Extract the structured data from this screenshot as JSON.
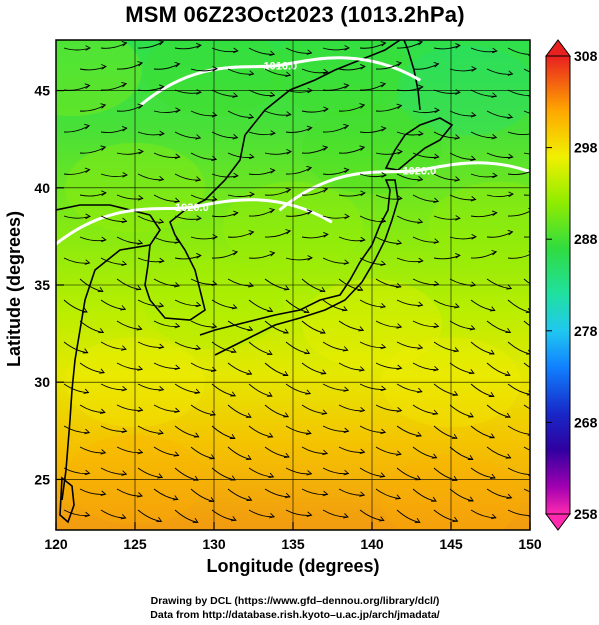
{
  "chart_data": {
    "type": "heatmap",
    "title": "MSM 06Z23Oct2023 (1013.2hPa)",
    "xlabel": "Longitude (degrees)",
    "ylabel": "Latitude  (degrees)",
    "xlim": [
      120,
      150
    ],
    "ylim": [
      22.4,
      47.6
    ],
    "xticks": [
      "120",
      "125",
      "130",
      "135",
      "140",
      "145",
      "150"
    ],
    "yticks": [
      "25",
      "30",
      "35",
      "40",
      "45"
    ],
    "grid": true,
    "colorbar": {
      "min": 258,
      "max": 308,
      "ticks": [
        "258",
        "268",
        "278",
        "288",
        "298",
        "308"
      ],
      "colors": [
        "#ff2ab0",
        "#5a00a0",
        "#1820c0",
        "#1070ff",
        "#20d0e8",
        "#20e080",
        "#40e020",
        "#a0f000",
        "#f8f000",
        "#ffb000",
        "#ff6020",
        "#e02020"
      ]
    },
    "isobars": [
      {
        "label": "1016.0",
        "lon": 134.2,
        "lat": 46.3
      },
      {
        "label": "1020.0",
        "lon": 143.0,
        "lat": 40.9
      },
      {
        "label": "1020.0",
        "lon": 128.6,
        "lat": 39.0
      }
    ],
    "temperature_field": [
      {
        "lon": 121,
        "lat": 46,
        "value": 288
      },
      {
        "lon": 130,
        "lat": 46,
        "value": 287
      },
      {
        "lon": 138,
        "lat": 46,
        "value": 283
      },
      {
        "lon": 146,
        "lat": 45,
        "value": 281
      },
      {
        "lon": 140,
        "lat": 42,
        "value": 284
      },
      {
        "lon": 125,
        "lat": 40,
        "value": 289
      },
      {
        "lon": 135,
        "lat": 38,
        "value": 288
      },
      {
        "lon": 148,
        "lat": 38,
        "value": 289
      },
      {
        "lon": 130,
        "lat": 34,
        "value": 290
      },
      {
        "lon": 140,
        "lat": 33,
        "value": 293
      },
      {
        "lon": 125,
        "lat": 30,
        "value": 294
      },
      {
        "lon": 145,
        "lat": 30,
        "value": 296
      },
      {
        "lon": 125,
        "lat": 25,
        "value": 297
      },
      {
        "lon": 145,
        "lat": 24,
        "value": 299
      }
    ]
  },
  "credits": {
    "line1": "Drawing by DCL (https://www.gfd–dennou.org/library/dcl/)",
    "line2": "Data from http://database.rish.kyoto–u.ac.jp/arch/jmadata/"
  }
}
